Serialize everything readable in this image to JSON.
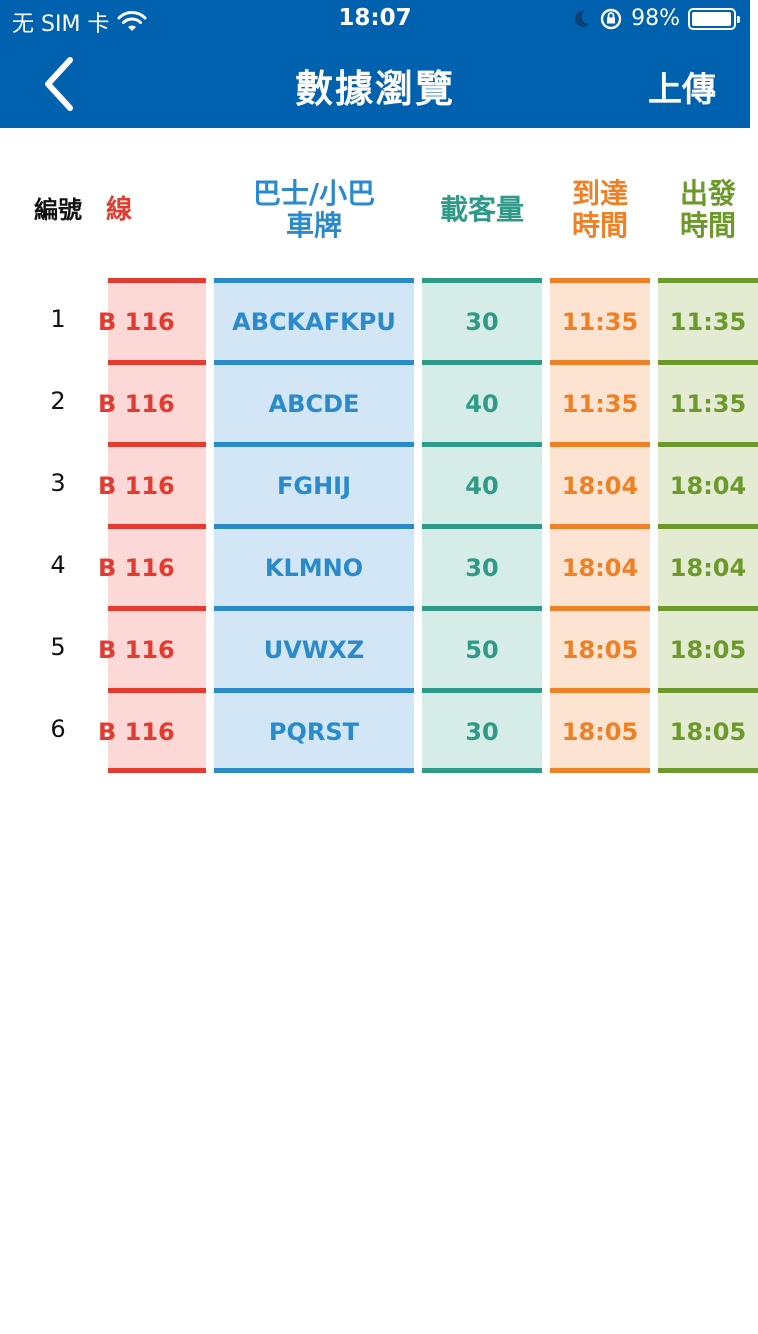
{
  "status": {
    "carrier": "无 SIM 卡",
    "time": "18:07",
    "battery": "98%",
    "battery_level": 0.98
  },
  "nav": {
    "title": "數據瀏覽",
    "upload": "上傳"
  },
  "headers": {
    "no": "編號",
    "route": "線",
    "plate": "巴士/小巴\n車牌",
    "capacity": "載客量",
    "arrival": "到達\n時間",
    "departure": "出發\n時間"
  },
  "rows": [
    {
      "no": "1",
      "route": "B 116",
      "plate": "ABCKAFKPU",
      "capacity": "30",
      "arrival": "11:35",
      "departure": "11:35"
    },
    {
      "no": "2",
      "route": "B 116",
      "plate": "ABCDE",
      "capacity": "40",
      "arrival": "11:35",
      "departure": "11:35"
    },
    {
      "no": "3",
      "route": "B 116",
      "plate": "FGHIJ",
      "capacity": "40",
      "arrival": "18:04",
      "departure": "18:04"
    },
    {
      "no": "4",
      "route": "B 116",
      "plate": "KLMNO",
      "capacity": "30",
      "arrival": "18:04",
      "departure": "18:04"
    },
    {
      "no": "5",
      "route": "B 116",
      "plate": "UVWXZ",
      "capacity": "50",
      "arrival": "18:05",
      "departure": "18:05"
    },
    {
      "no": "6",
      "route": "B 116",
      "plate": "PQRST",
      "capacity": "30",
      "arrival": "18:05",
      "departure": "18:05"
    }
  ],
  "colors": {
    "nav_bg": "#0061AE",
    "route": "#E43B30",
    "plate": "#2A8ACA",
    "capacity": "#2E9A87",
    "arrival": "#EE8125",
    "departure": "#6B9A2A"
  }
}
